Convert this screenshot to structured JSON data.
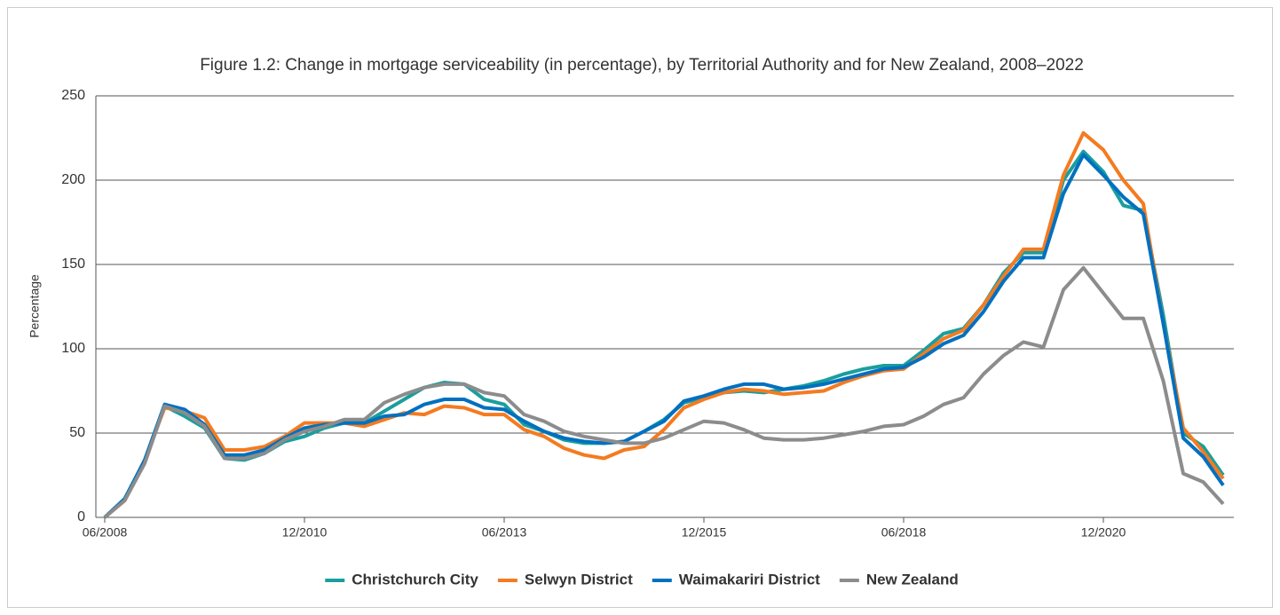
{
  "chart_data": {
    "type": "line",
    "title": "Figure 1.2: Change in mortgage serviceability (in percentage), by Territorial Authority and for New Zealand, 2008–2022",
    "y_label": "Percentage",
    "categories": [
      "06/2008",
      null,
      null,
      null,
      null,
      null,
      null,
      null,
      null,
      null,
      "12/2010",
      null,
      null,
      null,
      null,
      null,
      null,
      null,
      null,
      null,
      "06/2013",
      null,
      null,
      null,
      null,
      null,
      null,
      null,
      null,
      null,
      "12/2015",
      null,
      null,
      null,
      null,
      null,
      null,
      null,
      null,
      null,
      "06/2018",
      null,
      null,
      null,
      null,
      null,
      null,
      null,
      null,
      null,
      "12/2020",
      null,
      null,
      null,
      null,
      null,
      null
    ],
    "ylim": [
      0,
      250
    ],
    "yticks": [
      0,
      50,
      100,
      150,
      200,
      250
    ],
    "grid": true,
    "legend": "bottom",
    "series": [
      {
        "name": "Christchurch City",
        "color": "#1a9e9e",
        "values": [
          0,
          11,
          33,
          66,
          60,
          53,
          35,
          34,
          38,
          45,
          48,
          53,
          56,
          56,
          63,
          70,
          77,
          80,
          79,
          70,
          67,
          55,
          51,
          46,
          44,
          44,
          45,
          51,
          58,
          68,
          71,
          74,
          75,
          74,
          76,
          78,
          81,
          85,
          88,
          90,
          90,
          99,
          109,
          112,
          126,
          145,
          157,
          157,
          200,
          217,
          205,
          185,
          182,
          120,
          50,
          42,
          25
        ]
      },
      {
        "name": "Selwyn District",
        "color": "#f47b20",
        "values": [
          0,
          10,
          34,
          65,
          63,
          59,
          40,
          40,
          42,
          48,
          56,
          56,
          56,
          54,
          58,
          62,
          61,
          66,
          65,
          61,
          61,
          52,
          48,
          41,
          37,
          35,
          40,
          42,
          52,
          65,
          70,
          74,
          76,
          75,
          73,
          74,
          75,
          80,
          84,
          87,
          88,
          97,
          106,
          111,
          126,
          143,
          159,
          159,
          203,
          228,
          218,
          200,
          186,
          115,
          53,
          39,
          23
        ]
      },
      {
        "name": "Waimakariri District",
        "color": "#0070c0",
        "values": [
          0,
          11,
          34,
          67,
          64,
          55,
          37,
          37,
          40,
          47,
          53,
          55,
          56,
          56,
          60,
          61,
          67,
          70,
          70,
          65,
          64,
          57,
          51,
          47,
          45,
          44,
          45,
          51,
          57,
          69,
          72,
          76,
          79,
          79,
          76,
          77,
          79,
          82,
          85,
          88,
          89,
          95,
          103,
          108,
          122,
          140,
          154,
          154,
          192,
          215,
          203,
          190,
          180,
          115,
          47,
          36,
          19
        ]
      },
      {
        "name": "New Zealand",
        "color": "#8c8c8c",
        "values": [
          0,
          10,
          32,
          66,
          62,
          54,
          35,
          35,
          38,
          46,
          51,
          54,
          58,
          58,
          68,
          73,
          77,
          79,
          79,
          74,
          72,
          61,
          57,
          51,
          48,
          46,
          44,
          44,
          47,
          52,
          57,
          56,
          52,
          47,
          46,
          46,
          47,
          49,
          51,
          54,
          55,
          60,
          67,
          71,
          85,
          96,
          104,
          101,
          135,
          148,
          133,
          118,
          118,
          81,
          26,
          21,
          8
        ]
      }
    ]
  }
}
